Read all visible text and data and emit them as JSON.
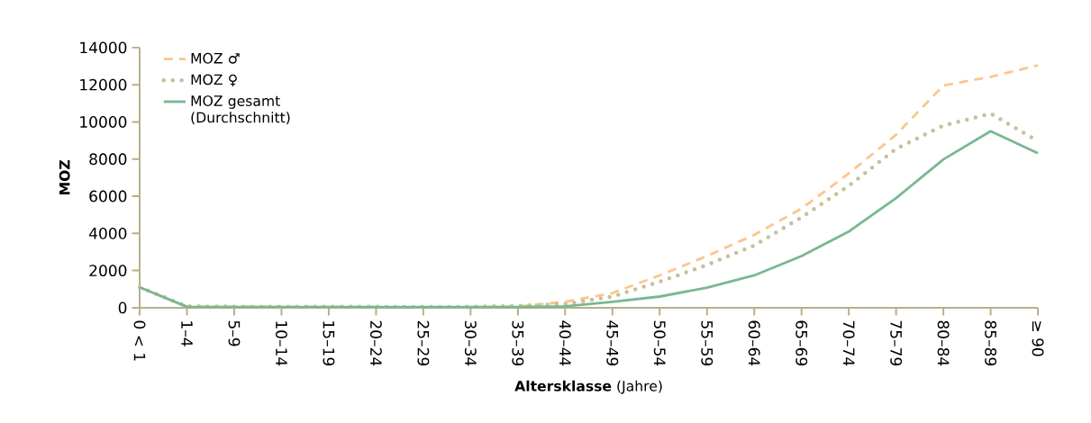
{
  "chart_data": {
    "type": "line",
    "xlabel": "**Altersklasse** (Jahre)",
    "ylabel": "MOZ",
    "categories": [
      "0 < 1",
      "1–4",
      "5–9",
      "10–14",
      "15–19",
      "20–24",
      "25–29",
      "30–34",
      "35–39",
      "40–44",
      "45–49",
      "50–54",
      "55–59",
      "60–64",
      "65–69",
      "70–74",
      "75–79",
      "80–84",
      "85–89",
      "≥ 90"
    ],
    "series": [
      {
        "name": "MOZ ♂",
        "color": "#fcc68e",
        "line_style": "dashed",
        "values": [
          1100,
          60,
          50,
          40,
          40,
          30,
          20,
          20,
          60,
          320,
          790,
          1740,
          2780,
          3920,
          5330,
          7230,
          9310,
          11960,
          12430,
          13040
        ]
      },
      {
        "name": "MOZ ♀",
        "color": "#c8c09a",
        "line_style": "dotted",
        "values": [
          1100,
          80,
          60,
          60,
          60,
          50,
          40,
          50,
          100,
          200,
          600,
          1400,
          2300,
          3350,
          4860,
          6560,
          8550,
          9800,
          10450,
          8970
        ]
      },
      {
        "name": "MOZ gesamt (Durchschnitt)",
        "color": "#79b891",
        "line_style": "solid",
        "values": [
          1100,
          50,
          40,
          40,
          40,
          30,
          30,
          30,
          40,
          70,
          320,
          600,
          1080,
          1740,
          2780,
          4100,
          5900,
          7980,
          9500,
          8310
        ]
      }
    ],
    "ylim": [
      0,
      14000
    ],
    "yticks": [
      0,
      2000,
      4000,
      6000,
      8000,
      10000,
      12000,
      14000
    ],
    "legend": "top left"
  }
}
